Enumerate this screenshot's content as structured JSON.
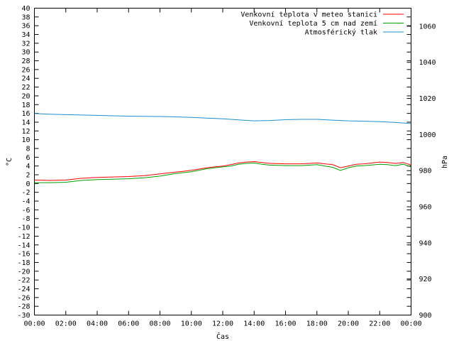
{
  "chart_data": {
    "type": "line",
    "xlabel": "Čas",
    "ylabel": "°C",
    "y2label": "hPa",
    "x_ticks": [
      "00:00",
      "02:00",
      "04:00",
      "06:00",
      "08:00",
      "10:00",
      "12:00",
      "14:00",
      "16:00",
      "18:00",
      "20:00",
      "22:00",
      "00:00"
    ],
    "x_range_hours": [
      0,
      24
    ],
    "ylim": [
      -30,
      40
    ],
    "y_ticks": [
      -30,
      -28,
      -26,
      -24,
      -22,
      -20,
      -18,
      -16,
      -14,
      -12,
      -10,
      -8,
      -6,
      -4,
      -2,
      0,
      2,
      4,
      6,
      8,
      10,
      12,
      14,
      16,
      18,
      20,
      22,
      24,
      26,
      28,
      30,
      32,
      34,
      36,
      38,
      40
    ],
    "y2lim": [
      900,
      1070
    ],
    "y2_ticks": [
      900,
      920,
      940,
      960,
      980,
      1000,
      1020,
      1040,
      1060
    ],
    "legend_position": "top-right",
    "grid": false,
    "series": [
      {
        "name": "Venkovní teplota v meteo stanici",
        "color": "#ff0000",
        "axis": "left",
        "x": [
          0,
          1,
          2,
          3,
          4,
          5,
          6,
          7,
          8,
          9,
          10,
          11,
          11.5,
          12,
          12.5,
          13,
          13.5,
          14,
          14.5,
          15,
          16,
          17,
          18,
          18.5,
          19,
          19.5,
          20,
          20.5,
          21,
          22,
          22.5,
          23,
          23.5,
          24
        ],
        "values": [
          0.8,
          0.7,
          0.8,
          1.2,
          1.4,
          1.5,
          1.6,
          1.8,
          2.2,
          2.6,
          3.0,
          3.6,
          3.8,
          4.0,
          4.3,
          4.7,
          4.9,
          5.0,
          4.8,
          4.6,
          4.5,
          4.5,
          4.7,
          4.5,
          4.3,
          3.6,
          4.0,
          4.4,
          4.5,
          4.9,
          4.8,
          4.6,
          4.8,
          4.2
        ]
      },
      {
        "name": "Venkovní teplota 5 cm nad zemí",
        "color": "#00a000",
        "axis": "left",
        "x": [
          0,
          1,
          2,
          3,
          4,
          5,
          6,
          7,
          8,
          9,
          10,
          11,
          11.5,
          12,
          12.5,
          13,
          13.5,
          14,
          14.5,
          15,
          16,
          17,
          18,
          18.5,
          19,
          19.5,
          20,
          20.5,
          21,
          22,
          22.5,
          23,
          23.5,
          24
        ],
        "values": [
          0.2,
          0.2,
          0.3,
          0.7,
          0.9,
          1.0,
          1.1,
          1.3,
          1.7,
          2.3,
          2.7,
          3.4,
          3.6,
          3.8,
          4.0,
          4.4,
          4.6,
          4.7,
          4.4,
          4.2,
          4.1,
          4.1,
          4.3,
          4.0,
          3.7,
          3.0,
          3.6,
          4.0,
          4.1,
          4.4,
          4.3,
          4.1,
          4.4,
          3.8
        ]
      },
      {
        "name": "Atmosférický tlak",
        "color": "#1f8fcf",
        "axis": "right",
        "x": [
          0,
          1,
          2,
          3,
          4,
          5,
          6,
          7,
          8,
          9,
          10,
          11,
          12,
          13,
          14,
          15,
          16,
          17,
          18,
          19,
          20,
          21,
          22,
          23,
          24
        ],
        "values": [
          1011.6,
          1011.3,
          1011.0,
          1010.8,
          1010.6,
          1010.4,
          1010.2,
          1010.1,
          1010.0,
          1009.8,
          1009.5,
          1009.1,
          1008.7,
          1008.1,
          1007.6,
          1007.8,
          1008.2,
          1008.4,
          1008.4,
          1008.0,
          1007.6,
          1007.4,
          1007.1,
          1006.7,
          1006.1
        ]
      }
    ]
  }
}
